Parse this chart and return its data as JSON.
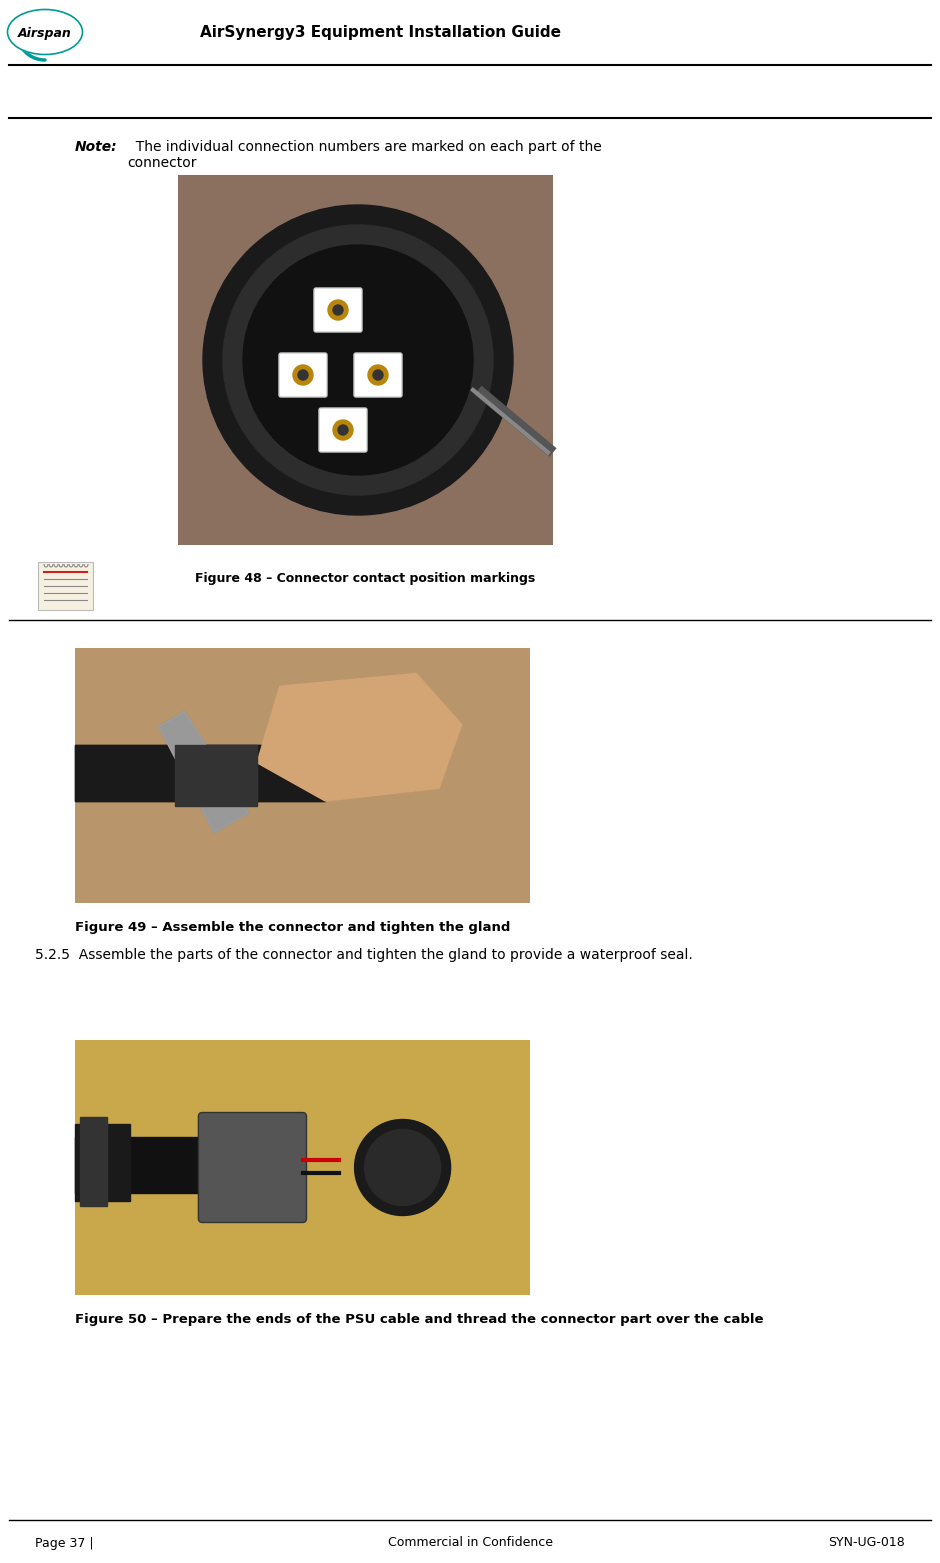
{
  "page_width": 9.4,
  "page_height": 15.63,
  "dpi": 100,
  "bg_color": "#ffffff",
  "header_title": "AirSynergy3 Equipment Installation Guide",
  "note_bold": "Note:",
  "note_text": "  The individual connection numbers are marked on each part of the connector",
  "fig48_label": "Figure 48 – Connector contact position markings",
  "fig49_label": "Figure 49 – Assemble the connector and tighten the gland",
  "step_525_text": "5.2.5  Assemble the parts of the connector and tighten the gland to provide a waterproof seal.",
  "fig50_label": "Figure 50 – Prepare the ends of the PSU cable and thread the connector part over the cable",
  "footer_left": "Page 37 |",
  "footer_center": "Commercial in Confidence",
  "footer_right": "SYN-UG-018",
  "teal_color": "#009999",
  "black": "#000000",
  "gray_light": "#dddddd",
  "img1_bg": "#8B7060",
  "img2_bg": "#B8956A",
  "img3_bg": "#C8A84A"
}
